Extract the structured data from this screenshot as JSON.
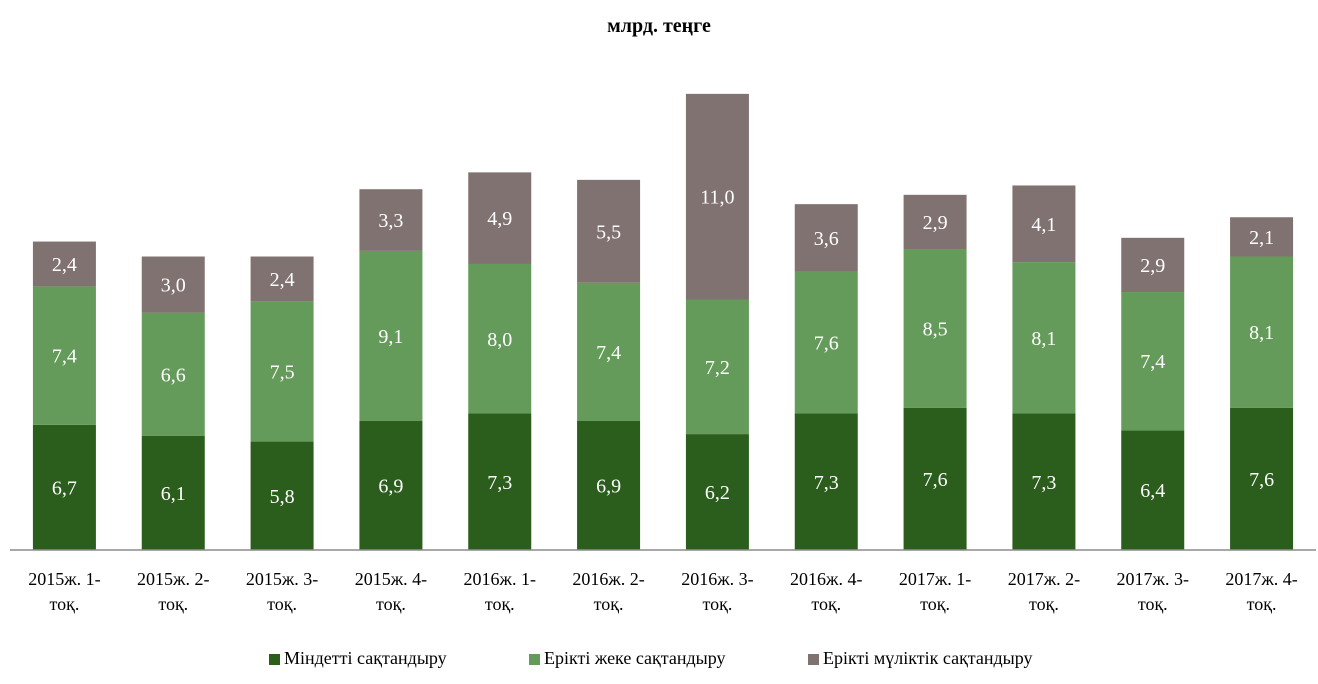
{
  "chart_data": {
    "type": "bar",
    "stacked": true,
    "title": "млрд. теңге",
    "categories": [
      "2015ж. 1-тоқ.",
      "2015ж. 2-тоқ.",
      "2015ж. 3-тоқ.",
      "2015ж. 4-тоқ.",
      "2016ж. 1-тоқ.",
      "2016ж. 2-тоқ.",
      "2016ж. 3-тоқ.",
      "2016ж. 4-тоқ.",
      "2017ж. 1-тоқ.",
      "2017ж. 2-тоқ.",
      "2017ж. 3-тоқ.",
      "2017ж. 4-тоқ."
    ],
    "category_lines": [
      [
        "2015ж. 1-",
        "тоқ."
      ],
      [
        "2015ж. 2-",
        "тоқ."
      ],
      [
        "2015ж. 3-",
        "тоқ."
      ],
      [
        "2015ж. 4-",
        "тоқ."
      ],
      [
        "2016ж. 1-",
        "тоқ."
      ],
      [
        "2016ж. 2-",
        "тоқ."
      ],
      [
        "2016ж. 3-",
        "тоқ."
      ],
      [
        "2016ж. 4-",
        "тоқ."
      ],
      [
        "2017ж. 1-",
        "тоқ."
      ],
      [
        "2017ж. 2-",
        "тоқ."
      ],
      [
        "2017ж. 3-",
        "тоқ."
      ],
      [
        "2017ж. 4-",
        "тоқ."
      ]
    ],
    "series": [
      {
        "name": "Міндетті сақтандыру",
        "color": "#2b5d1c",
        "values": [
          6.7,
          6.1,
          5.8,
          6.9,
          7.3,
          6.9,
          6.2,
          7.3,
          7.6,
          7.3,
          6.4,
          7.6
        ],
        "labels": [
          "6,7",
          "6,1",
          "5,8",
          "6,9",
          "7,3",
          "6,9",
          "6,2",
          "7,3",
          "7,6",
          "7,3",
          "6,4",
          "7,6"
        ]
      },
      {
        "name": "Ерікті жеке сақтандыру",
        "color": "#659b5a",
        "values": [
          7.4,
          6.6,
          7.5,
          9.1,
          8.0,
          7.4,
          7.2,
          7.6,
          8.5,
          8.1,
          7.4,
          8.1
        ],
        "labels": [
          "7,4",
          "6,6",
          "7,5",
          "9,1",
          "8,0",
          "7,4",
          "7,2",
          "7,6",
          "8,5",
          "8,1",
          "7,4",
          "8,1"
        ]
      },
      {
        "name": "Ерікті мүліктік сақтандыру",
        "color": "#807270",
        "values": [
          2.4,
          3.0,
          2.4,
          3.3,
          4.9,
          5.5,
          11.0,
          3.6,
          2.9,
          4.1,
          2.9,
          2.1
        ],
        "labels": [
          "2,4",
          "3,0",
          "2,4",
          "3,3",
          "4,9",
          "5,5",
          "11,0",
          "3,6",
          "2,9",
          "4,1",
          "2,9",
          "2,1"
        ]
      }
    ],
    "ylim": [
      0,
      24.5
    ],
    "grid": false,
    "legend_position": "bottom-center",
    "data_label_color": "#ffffff"
  }
}
